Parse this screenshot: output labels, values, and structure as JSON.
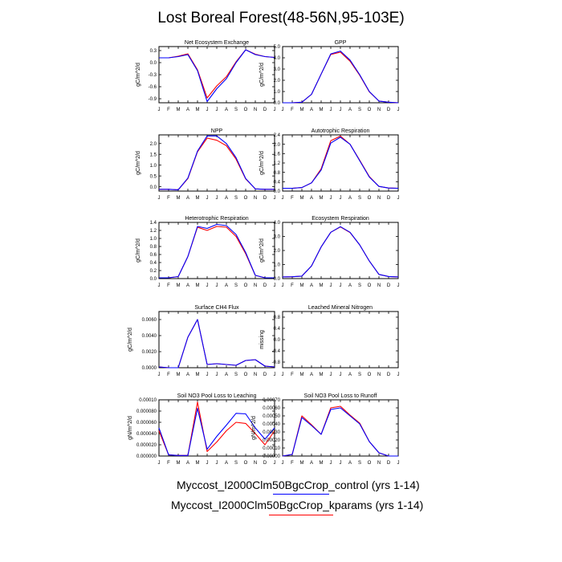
{
  "title": "Lost Boreal Forest(48-56N,95-103E)",
  "months": [
    "J",
    "F",
    "M",
    "A",
    "M",
    "J",
    "J",
    "A",
    "S",
    "O",
    "N",
    "D",
    "J"
  ],
  "series_colors": {
    "control": "#0000ff",
    "kparams": "#ff0000"
  },
  "legend": [
    {
      "label": "Myccost_I2000Clm50BgcCrop_control (yrs 1-14)",
      "color": "#0000ff"
    },
    {
      "label": "Myccost_I2000Clm50BgcCrop_kparams (yrs 1-14)",
      "color": "#ff0000"
    }
  ],
  "chart_data": [
    {
      "type": "line",
      "title": "Net Ecosystem Exchange",
      "ylabel": "gC/m^2/d",
      "ylim": [
        -1.0,
        0.4
      ],
      "yticks": [
        "0.3",
        "0.0",
        "-0.3",
        "-0.6",
        "-0.9"
      ],
      "ytick_values": [
        0.3,
        0.0,
        -0.3,
        -0.6,
        -0.9
      ],
      "series": [
        {
          "key": "control",
          "values": [
            0.12,
            0.12,
            0.15,
            0.2,
            -0.2,
            -0.97,
            -0.65,
            -0.4,
            0.0,
            0.32,
            0.2,
            0.15,
            0.13
          ]
        },
        {
          "key": "kparams",
          "values": [
            0.12,
            0.12,
            0.16,
            0.22,
            -0.18,
            -0.88,
            -0.58,
            -0.35,
            0.02,
            0.32,
            0.21,
            0.15,
            0.13
          ]
        }
      ]
    },
    {
      "type": "line",
      "title": "GPP",
      "ylabel": "gC/m^2/d",
      "ylim": [
        0.0,
        5.0
      ],
      "yticks": [
        "5.0",
        "4.0",
        "3.0",
        "2.0",
        "1.0",
        "0.0"
      ],
      "ytick_values": [
        5,
        4,
        3,
        2,
        1,
        0
      ],
      "series": [
        {
          "key": "control",
          "values": [
            0.0,
            0.0,
            0.05,
            0.75,
            2.55,
            4.35,
            4.6,
            3.8,
            2.5,
            1.0,
            0.15,
            0.05,
            0.0
          ]
        },
        {
          "key": "kparams",
          "values": [
            0.0,
            0.0,
            0.05,
            0.75,
            2.55,
            4.3,
            4.5,
            3.7,
            2.45,
            0.98,
            0.15,
            0.05,
            0.0
          ]
        }
      ]
    },
    {
      "type": "line",
      "title": "NPP",
      "ylabel": "gC/m^2/d",
      "ylim": [
        -0.2,
        2.4
      ],
      "yticks": [
        "2.0",
        "1.5",
        "1.0",
        "0.5",
        "0.0"
      ],
      "ytick_values": [
        2.0,
        1.5,
        1.0,
        0.5,
        0.0
      ],
      "series": [
        {
          "key": "control",
          "values": [
            -0.12,
            -0.12,
            -0.14,
            0.4,
            1.65,
            2.35,
            2.35,
            2.0,
            1.35,
            0.38,
            -0.1,
            -0.12,
            -0.12
          ]
        },
        {
          "key": "kparams",
          "values": [
            -0.12,
            -0.12,
            -0.14,
            0.38,
            1.62,
            2.25,
            2.15,
            1.9,
            1.28,
            0.36,
            -0.1,
            -0.12,
            -0.12
          ]
        }
      ]
    },
    {
      "type": "line",
      "title": "Autotrophic Respiration",
      "ylabel": "gC/m^2/d",
      "ylim": [
        0.0,
        2.4
      ],
      "yticks": [
        "2.4",
        "2.0",
        "1.6",
        "1.2",
        "0.8",
        "0.4",
        "0.0"
      ],
      "ytick_values": [
        2.4,
        2.0,
        1.6,
        1.2,
        0.8,
        0.4,
        0.0
      ],
      "series": [
        {
          "key": "control",
          "values": [
            0.12,
            0.12,
            0.15,
            0.35,
            0.9,
            2.05,
            2.3,
            2.0,
            1.3,
            0.6,
            0.2,
            0.13,
            0.12
          ]
        },
        {
          "key": "kparams",
          "values": [
            0.12,
            0.12,
            0.15,
            0.35,
            0.95,
            2.15,
            2.35,
            2.0,
            1.32,
            0.62,
            0.2,
            0.13,
            0.12
          ]
        }
      ]
    },
    {
      "type": "line",
      "title": "Heterotrophic Respiration",
      "ylabel": "gC/m^2/d",
      "ylim": [
        0.0,
        1.4
      ],
      "yticks": [
        "1.4",
        "1.2",
        "1.0",
        "0.8",
        "0.6",
        "0.4",
        "0.2",
        "0.0"
      ],
      "ytick_values": [
        1.4,
        1.2,
        1.0,
        0.8,
        0.6,
        0.4,
        0.2,
        0.0
      ],
      "series": [
        {
          "key": "control",
          "values": [
            0.02,
            0.02,
            0.05,
            0.55,
            1.3,
            1.25,
            1.35,
            1.32,
            1.1,
            0.65,
            0.08,
            0.02,
            0.02
          ]
        },
        {
          "key": "kparams",
          "values": [
            0.02,
            0.02,
            0.05,
            0.55,
            1.28,
            1.2,
            1.3,
            1.28,
            1.05,
            0.62,
            0.08,
            0.02,
            0.02
          ]
        }
      ]
    },
    {
      "type": "line",
      "title": "Ecosystem Respiration",
      "ylabel": "gC/m^2/d",
      "ylim": [
        0.0,
        4.0
      ],
      "yticks": [
        "4.0",
        "3.0",
        "2.0",
        "1.0",
        "0.0"
      ],
      "ytick_values": [
        4,
        3,
        2,
        1,
        0
      ],
      "series": [
        {
          "key": "control",
          "values": [
            0.12,
            0.13,
            0.18,
            0.9,
            2.25,
            3.3,
            3.7,
            3.3,
            2.4,
            1.25,
            0.3,
            0.15,
            0.12
          ]
        },
        {
          "key": "kparams",
          "values": [
            0.12,
            0.13,
            0.18,
            0.9,
            2.25,
            3.3,
            3.68,
            3.28,
            2.4,
            1.25,
            0.3,
            0.15,
            0.12
          ]
        }
      ]
    },
    {
      "type": "line",
      "title": "Surface CH4 Flux",
      "ylabel": "gC/m^2/d",
      "ylim": [
        0.0,
        0.007
      ],
      "yticks": [
        "0.0060",
        "0.0040",
        "0.0020",
        "0.0000"
      ],
      "ytick_values": [
        0.006,
        0.004,
        0.002,
        0.0
      ],
      "series": [
        {
          "key": "control",
          "values": [
            0.0001,
            0.0,
            0.0,
            0.0038,
            0.006,
            0.0004,
            0.0005,
            0.0004,
            0.0003,
            0.0009,
            0.001,
            0.0002,
            0.0001
          ]
        },
        {
          "key": "kparams",
          "values": [
            0.0001,
            0.0,
            0.0,
            0.0038,
            0.006,
            0.0004,
            0.0005,
            0.0004,
            0.0003,
            0.0009,
            0.001,
            0.0002,
            0.0001
          ]
        }
      ]
    },
    {
      "type": "line",
      "title": "Leached Mineral Nitrogen",
      "ylabel": "missing",
      "ylim": [
        -1.0,
        1.0
      ],
      "yticks": [
        "0.8",
        "0.4",
        "0.0",
        "-0.4",
        "-0.8"
      ],
      "ytick_values": [
        0.8,
        0.4,
        0.0,
        -0.4,
        -0.8
      ],
      "series": []
    },
    {
      "type": "line",
      "title": "Soil NO3 Pool Loss to Leaching",
      "ylabel": "gN/m^2/d",
      "ylim": [
        0.0,
        0.0001
      ],
      "yticks": [
        "0.00010",
        "0.000080",
        "0.000060",
        "0.000040",
        "0.000020",
        "0.000000"
      ],
      "ytick_values": [
        0.0001,
        8e-05,
        6e-05,
        4e-05,
        2e-05,
        0.0
      ],
      "series": [
        {
          "key": "control",
          "values": [
            5e-05,
            2e-06,
            1e-06,
            1e-06,
            8.5e-05,
            1.2e-05,
            3.5e-05,
            5.5e-05,
            7.6e-05,
            7.5e-05,
            5e-05,
            3e-05,
            5e-05
          ]
        },
        {
          "key": "kparams",
          "values": [
            4.5e-05,
            2e-06,
            1e-06,
            1e-06,
            9.6e-05,
            8e-06,
            2.5e-05,
            4.5e-05,
            6e-05,
            5.8e-05,
            4e-05,
            2e-05,
            4.5e-05
          ]
        }
      ]
    },
    {
      "type": "line",
      "title": "Soil NO3 Pool Loss to Runoff",
      "ylabel": "gN/m^2/d",
      "ylim": [
        0.0,
        0.0007
      ],
      "yticks": [
        "0.00070",
        "0.00060",
        "0.00050",
        "0.00040",
        "0.00030",
        "0.00020",
        "0.00010",
        "0.00000"
      ],
      "ytick_values": [
        0.0007,
        0.0006,
        0.0005,
        0.0004,
        0.0003,
        0.0002,
        0.0001,
        0.0
      ],
      "series": [
        {
          "key": "control",
          "values": [
            0.0,
            2e-05,
            0.00048,
            0.00038,
            0.00027,
            0.00058,
            0.0006,
            0.0005,
            0.0004,
            0.00018,
            4e-05,
            0.0,
            0.0
          ]
        },
        {
          "key": "kparams",
          "values": [
            0.0,
            2e-05,
            0.0005,
            0.00039,
            0.00027,
            0.0006,
            0.00062,
            0.00051,
            0.00041,
            0.00018,
            4e-05,
            0.0,
            0.0
          ]
        }
      ]
    }
  ]
}
